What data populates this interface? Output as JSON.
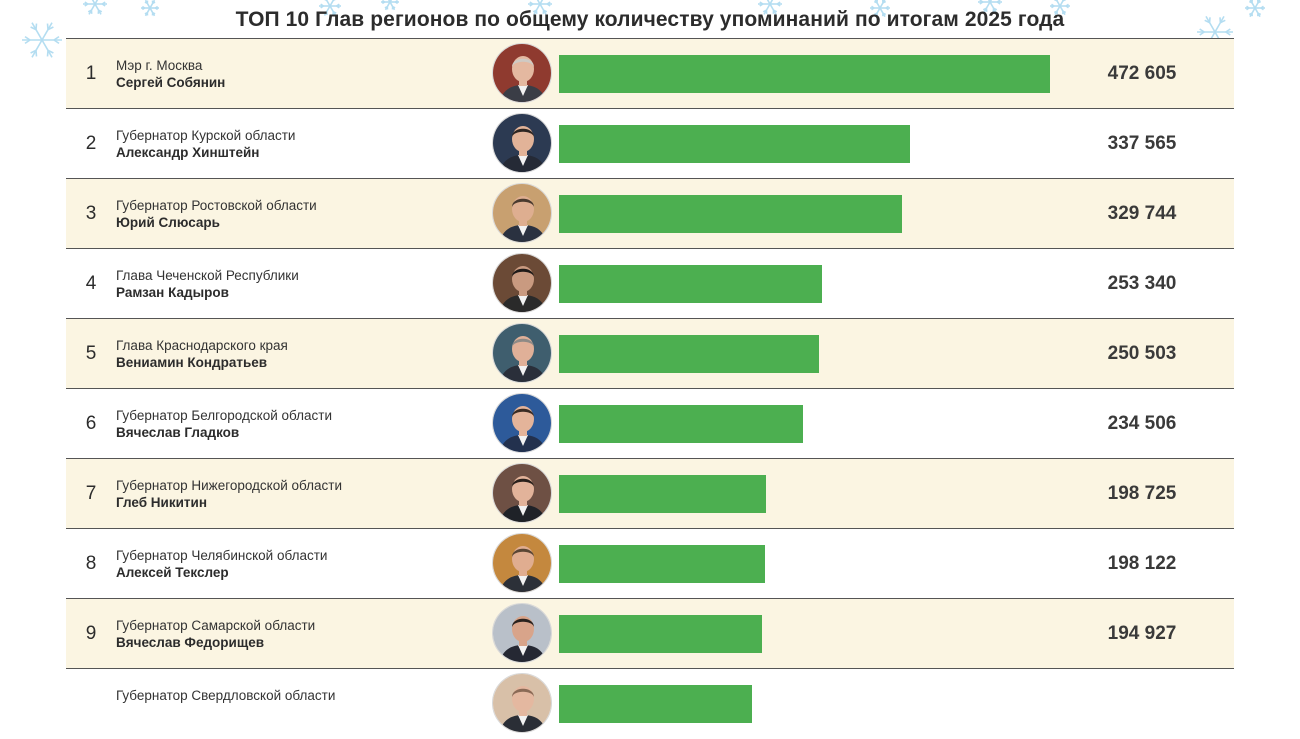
{
  "chart_data": {
    "type": "bar",
    "orientation": "horizontal",
    "title": "ТОП 10 Глав регионов по общему количеству упоминаний по итогам 2025 года",
    "xlim": [
      0,
      472605
    ],
    "rows": [
      {
        "rank": "1",
        "position": "Мэр г. Москва",
        "person": "Сергей Собянин",
        "value": 472605,
        "value_label": "472 605",
        "avatar_colors": {
          "bg": "#8f3a2f",
          "hair": "#cfcac4",
          "skin": "#e4b8a0",
          "suit": "#3a3d46"
        }
      },
      {
        "rank": "2",
        "position": "Губернатор Курской области",
        "person": "Александр Хинштейн",
        "value": 337565,
        "value_label": "337 565",
        "avatar_colors": {
          "bg": "#2c3a52",
          "hair": "#2e2622",
          "skin": "#e2b398",
          "suit": "#252a36"
        }
      },
      {
        "rank": "3",
        "position": "Губернатор Ростовской области",
        "person": "Юрий Слюсарь",
        "value": 329744,
        "value_label": "329 744",
        "avatar_colors": {
          "bg": "#c8a070",
          "hair": "#4a3a2e",
          "skin": "#deae90",
          "suit": "#2a3140"
        }
      },
      {
        "rank": "4",
        "position": "Глава Чеченской Республики",
        "person": "Рамзан Кадыров",
        "value": 253340,
        "value_label": "253 340",
        "avatar_colors": {
          "bg": "#6b4a36",
          "hair": "#1f1a18",
          "skin": "#c99a80",
          "suit": "#2a2a2a"
        }
      },
      {
        "rank": "5",
        "position": "Глава Краснодарского края",
        "person": "Вениамин Кондратьев",
        "value": 250503,
        "value_label": "250 503",
        "avatar_colors": {
          "bg": "#3f5e6e",
          "hair": "#8e8a86",
          "skin": "#e0b098",
          "suit": "#2a2f3a"
        }
      },
      {
        "rank": "6",
        "position": "Губернатор Белгородской области",
        "person": "Вячеслав Гладков",
        "value": 234506,
        "value_label": "234 506",
        "avatar_colors": {
          "bg": "#2d5a9a",
          "hair": "#3a2c24",
          "skin": "#e4b49a",
          "suit": "#23314e"
        }
      },
      {
        "rank": "7",
        "position": "Губернатор Нижегородской области",
        "person": "Глеб Никитин",
        "value": 198725,
        "value_label": "198 725",
        "avatar_colors": {
          "bg": "#6e5044",
          "hair": "#2a211c",
          "skin": "#e2b39a",
          "suit": "#1f2228"
        }
      },
      {
        "rank": "8",
        "position": "Губернатор Челябинской области",
        "person": "Алексей Текслер",
        "value": 198122,
        "value_label": "198 122",
        "avatar_colors": {
          "bg": "#c4883e",
          "hair": "#5a4634",
          "skin": "#e0ad90",
          "suit": "#2c3038"
        }
      },
      {
        "rank": "9",
        "position": "Губернатор Самарской области",
        "person": "Вячеслав Федорищев",
        "value": 194927,
        "value_label": "194 927",
        "avatar_colors": {
          "bg": "#b9c0c9",
          "hair": "#2a221e",
          "skin": "#d8a48a",
          "suit": "#252833"
        }
      },
      {
        "rank": "",
        "position": "Губернатор Свердловской области",
        "person": "",
        "value": 186000,
        "value_label": "",
        "avatar_colors": {
          "bg": "#d8c0a8",
          "hair": "#8a6a56",
          "skin": "#e4b8a0",
          "suit": "#2a2e36"
        }
      }
    ]
  },
  "colors": {
    "bar": "#4caf50",
    "row_shaded": "#fbf5e2",
    "row_plain": "#ffffff",
    "divider": "#555555",
    "snow": "#a8d8ef"
  }
}
